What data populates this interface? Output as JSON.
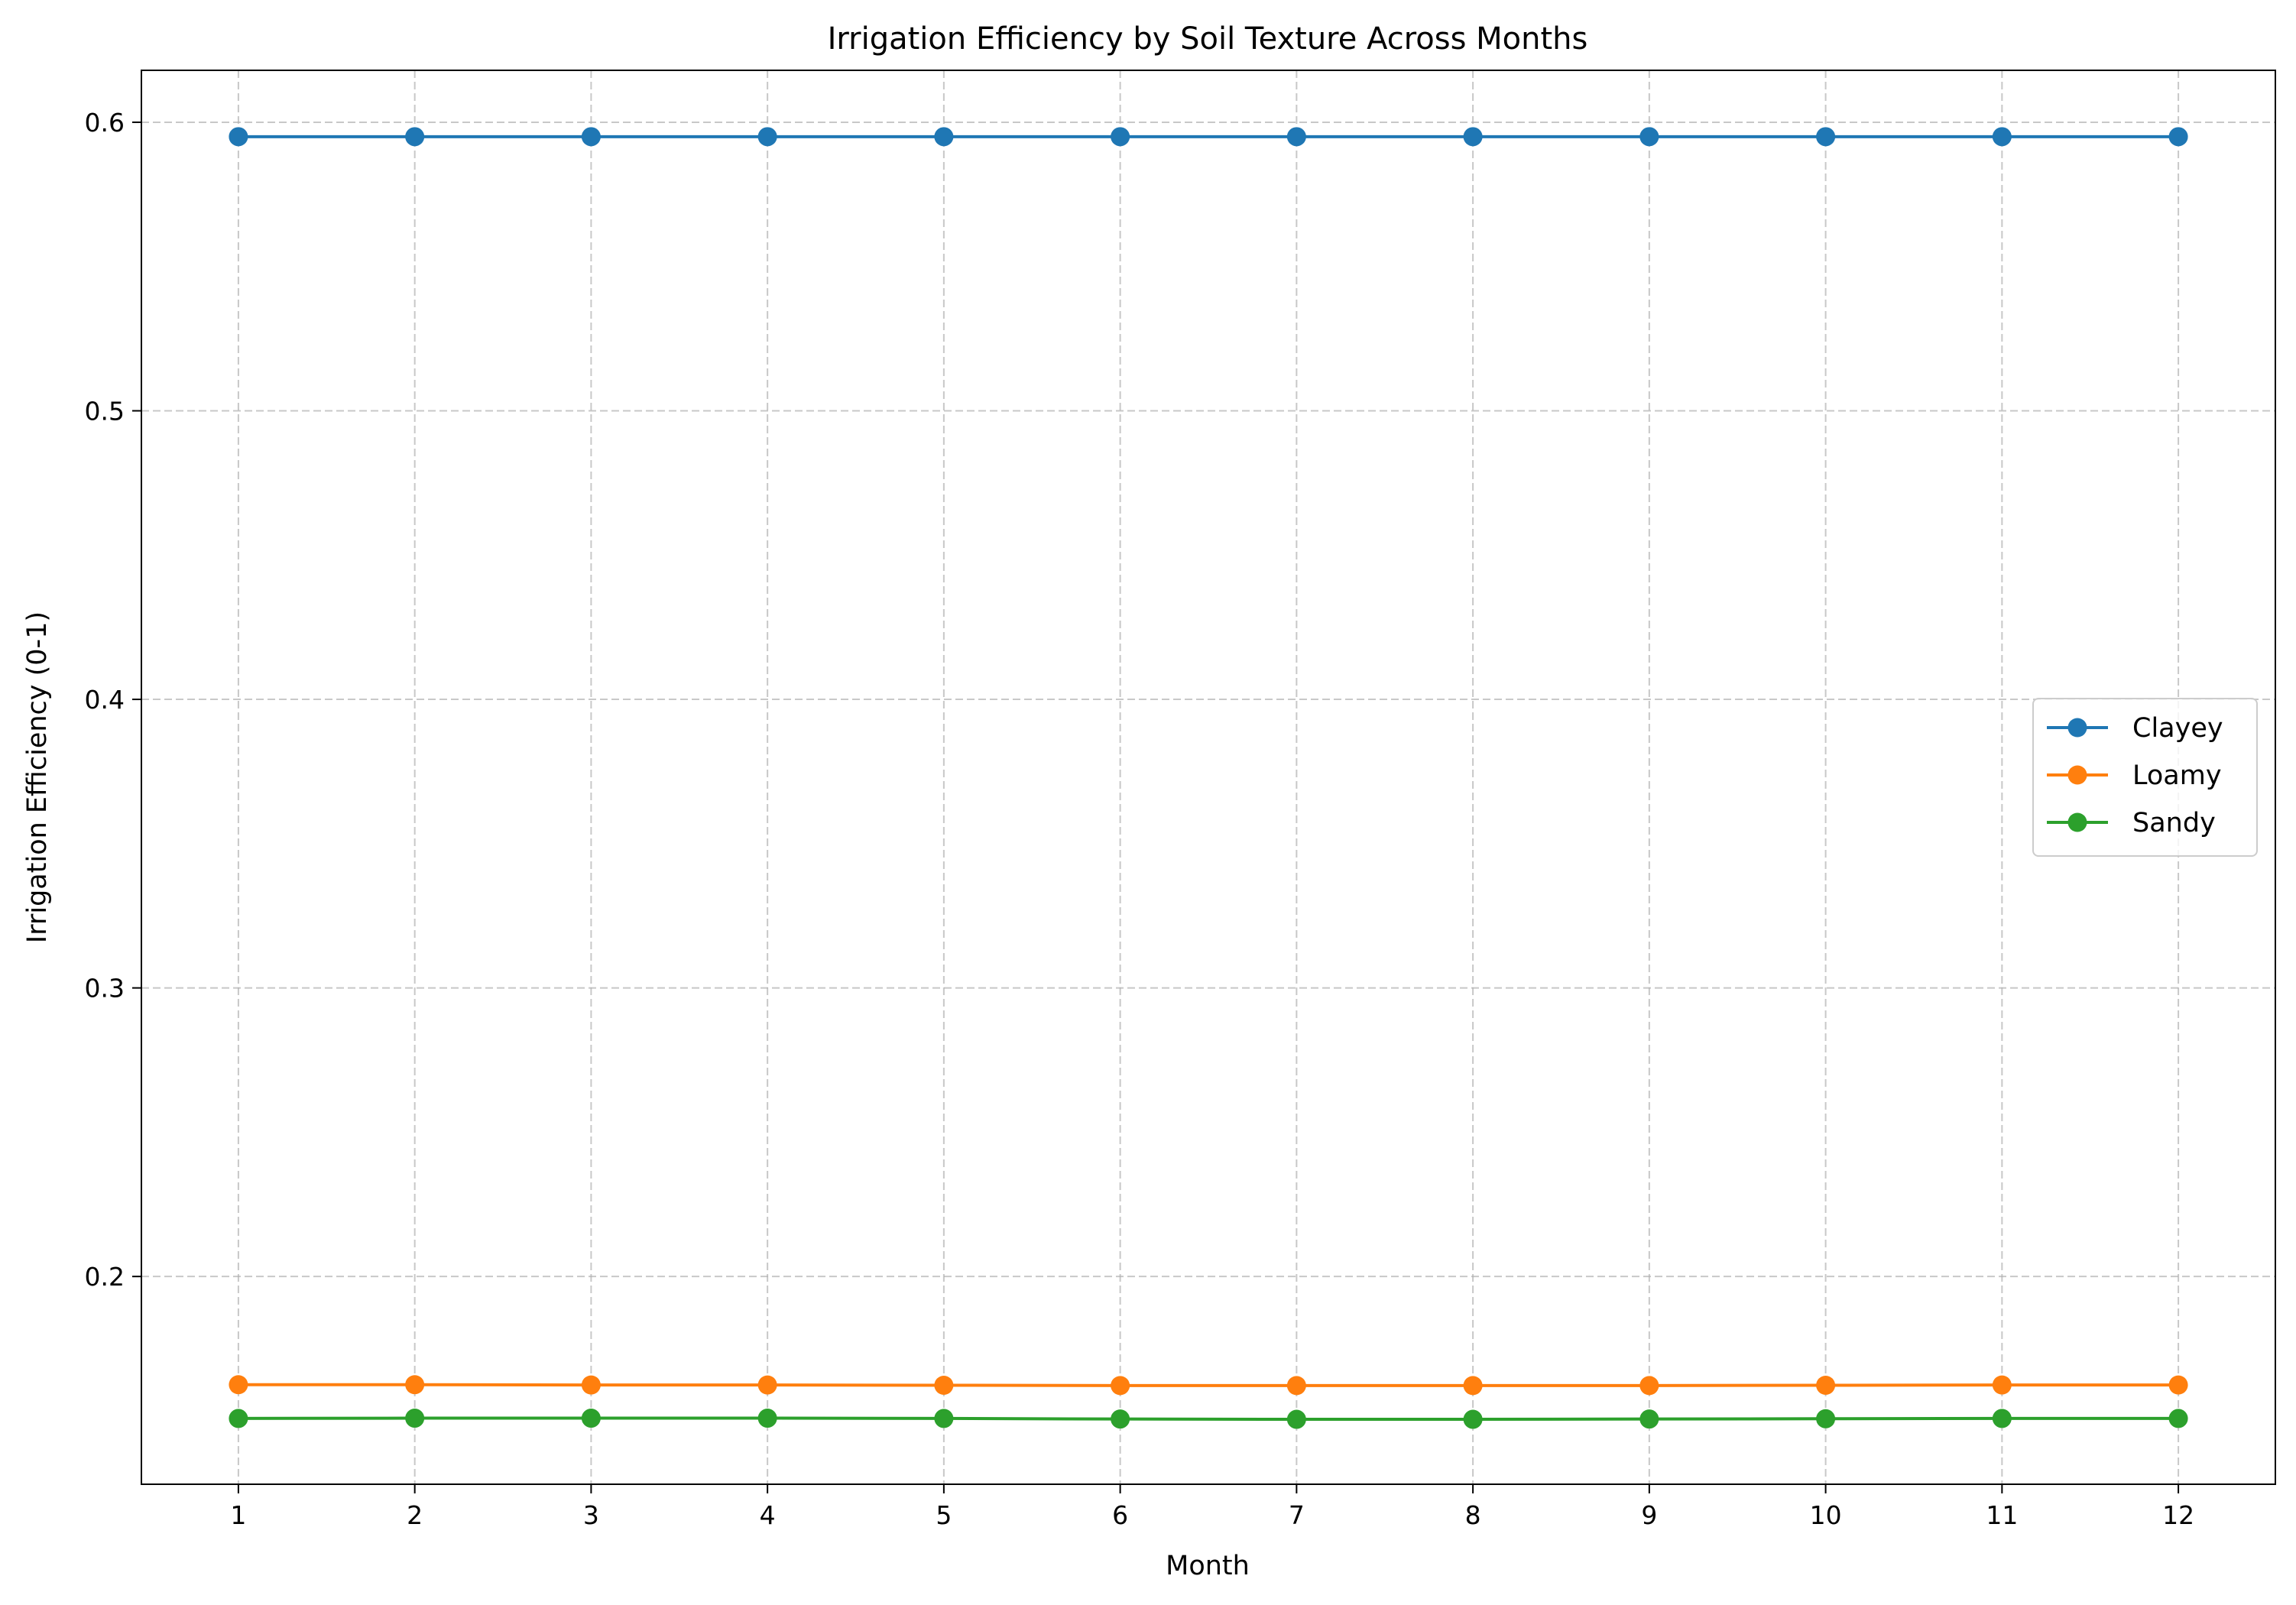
{
  "chart_data": {
    "type": "line",
    "title": "Irrigation Efficiency by Soil Texture Across Months",
    "xlabel": "Month",
    "ylabel": "Irrigation Efficiency (0-1)",
    "x": [
      1,
      2,
      3,
      4,
      5,
      6,
      7,
      8,
      9,
      10,
      11,
      12
    ],
    "x_tick_labels": [
      "1",
      "2",
      "3",
      "4",
      "5",
      "6",
      "7",
      "8",
      "9",
      "10",
      "11",
      "12"
    ],
    "y_ticks": [
      0.2,
      0.3,
      0.4,
      0.5,
      0.6
    ],
    "y_tick_labels": [
      "0.2",
      "0.3",
      "0.4",
      "0.5",
      "0.6"
    ],
    "xlim": [
      0.45,
      12.55
    ],
    "ylim": [
      0.128,
      0.618
    ],
    "grid": true,
    "grid_style": "dashed",
    "legend_position": "center-right",
    "series": [
      {
        "name": "Clayey",
        "color": "#1f77b4",
        "values": [
          0.595,
          0.595,
          0.595,
          0.595,
          0.595,
          0.595,
          0.595,
          0.595,
          0.595,
          0.595,
          0.595,
          0.595
        ]
      },
      {
        "name": "Loamy",
        "color": "#ff7f0e",
        "values": [
          0.1625,
          0.1625,
          0.1624,
          0.1624,
          0.1623,
          0.1622,
          0.1622,
          0.1622,
          0.1622,
          0.1623,
          0.1624,
          0.1624
        ]
      },
      {
        "name": "Sandy",
        "color": "#2ca02c",
        "values": [
          0.1508,
          0.1509,
          0.1509,
          0.1509,
          0.1508,
          0.1506,
          0.1505,
          0.1505,
          0.1506,
          0.1507,
          0.1508,
          0.1508
        ]
      }
    ]
  }
}
